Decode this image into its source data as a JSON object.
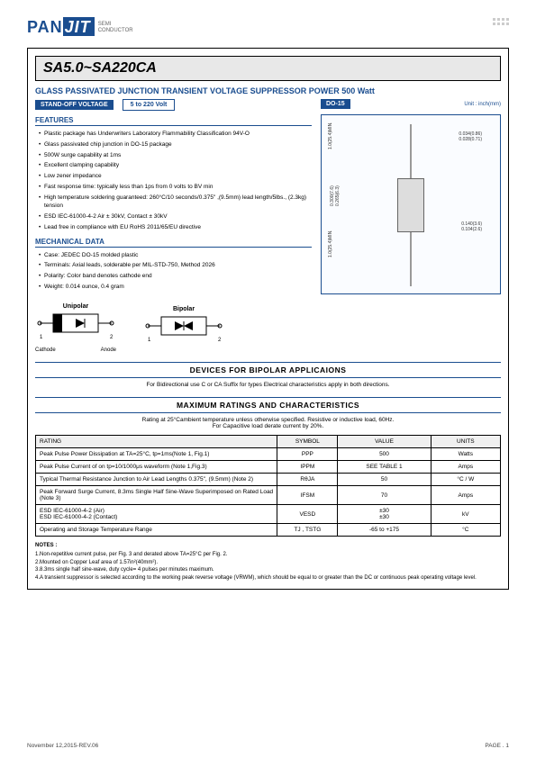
{
  "logo": {
    "p1": "PAN",
    "p2": "JIT",
    "sub1": "SEMI",
    "sub2": "CONDUCTOR"
  },
  "title": "SA5.0~SA220CA",
  "subtitle": "GLASS PASSIVATED JUNCTION TRANSIENT VOLTAGE SUPPRESSOR  POWER  500 Watt",
  "standoff_label": "STAND-OFF VOLTAGE",
  "standoff_value": "5  to  220 Volt",
  "package_label": "DO-15",
  "unit_label": "Unit : inch(mm)",
  "features_title": "FEATURES",
  "features": [
    "Plastic package has Underwriters Laboratory Flammability Classification 94V-O",
    "Glass passivated chip junction in DO-15 package",
    "500W surge capability at 1ms",
    "Excellent clamping capability",
    "Low zener impedance",
    "Fast response time: typically less than 1ps from 0 volts to BV min",
    "High temperature soldering guaranteed: 260°C/10 seconds/0.375\" ,(9.5mm) lead length/5lbs., (2.3kg) tension",
    "ESD IEC-61000-4-2 Air ± 30kV, Contact ± 30kV",
    "Lead free in compliance with EU RoHS 2011/65/EU directive"
  ],
  "mech_title": "MECHANICAL DATA",
  "mechanical": [
    "Case: JEDEC DO-15 molded plastic",
    "Terminals: Axial leads, solderable per MIL-STD-750, Method 2026",
    "Polarity: Color band denotes cathode end",
    "Weight: 0.014 ounce, 0.4 gram"
  ],
  "pkg_dims": {
    "d1": "0.034(0.86)",
    "d2": "0.028(0.71)",
    "d3": "1.0(25.4)MIN.",
    "d4": "0.300(7.6)",
    "d5": "0.265(6.3)",
    "d6": "0.140(3.6)",
    "d7": "0.104(2.6)",
    "d8": "1.0(25.4)MIN."
  },
  "diodes": {
    "unipolar": "Unipolar",
    "bipolar": "Bipolar",
    "cathode": "Cathode",
    "anode": "Anode",
    "n1": "1",
    "n2": "2"
  },
  "dev_title": "DEVICES  FOR  BIPOLAR  APPLICAIONS",
  "dev_text": "For Bidirectional use C or CA Suffix for types  Electrical characteristics apply in both directions.",
  "max_title": "MAXIMUM  RATINGS  AND  CHARACTERISTICS",
  "max_text1": "Rating at 25°Cambient temperature unless otherwise specified. Resistive or inductive load, 60Hz.",
  "max_text2": "For Capacitive load derate current by 20%.",
  "table": {
    "headers": [
      "RATING",
      "SYMBOL",
      "VALUE",
      "UNITS"
    ],
    "rows": [
      [
        "Peak Pulse Power Dissipation at TA=25°C, tp=1ms(Note 1, Fig.1)",
        "PPP",
        "500",
        "Watts"
      ],
      [
        "Peak Pulse Current of on tp=10/1000μs waveform (Note 1,Fig.3)",
        "IPPM",
        "SEE  TABLE  1",
        "Amps"
      ],
      [
        "Typical Thermal Resistance Junction to Air Lead Lengths 0.375\", (9.5mm) (Note 2)",
        "RθJA",
        "50",
        "°C / W"
      ],
      [
        "Peak Forward Surge Current, 8.3ms Single Half Sine-Wave Superimposed on Rated Load (Note 3)",
        "IFSM",
        "70",
        "Amps"
      ],
      [
        "ESD IEC-61000-4-2 (Air)\nESD IEC-61000-4-2 (Contact)",
        "VESD",
        "±30\n±30",
        "kV"
      ],
      [
        "Operating and Storage Temperature Range",
        "TJ , TSTG",
        "-65  to  +175",
        "°C"
      ]
    ]
  },
  "notes_title": "NOTES :",
  "notes": [
    "1.Non-repetitive current pulse, per Fig. 3 and derated above TA=25°C per Fig. 2.",
    "2.Mounted on Copper Leaf area of 1.57in²(40mm²).",
    "3.8.3ms single half sine-wave, duty cycle= 4 pulses per minutes maximum.",
    "4.A transient suppressor is selected according to the working peak reverse voltage (VRWM), which should be equal to or greater than the DC or continuous peak operating voltage level."
  ],
  "footer": {
    "date": "November 12,2015-REV.06",
    "page": "PAGE .  1"
  },
  "colors": {
    "brand": "#1a4d8f",
    "bg": "#ffffff",
    "title_bg": "#e8e8e8"
  }
}
